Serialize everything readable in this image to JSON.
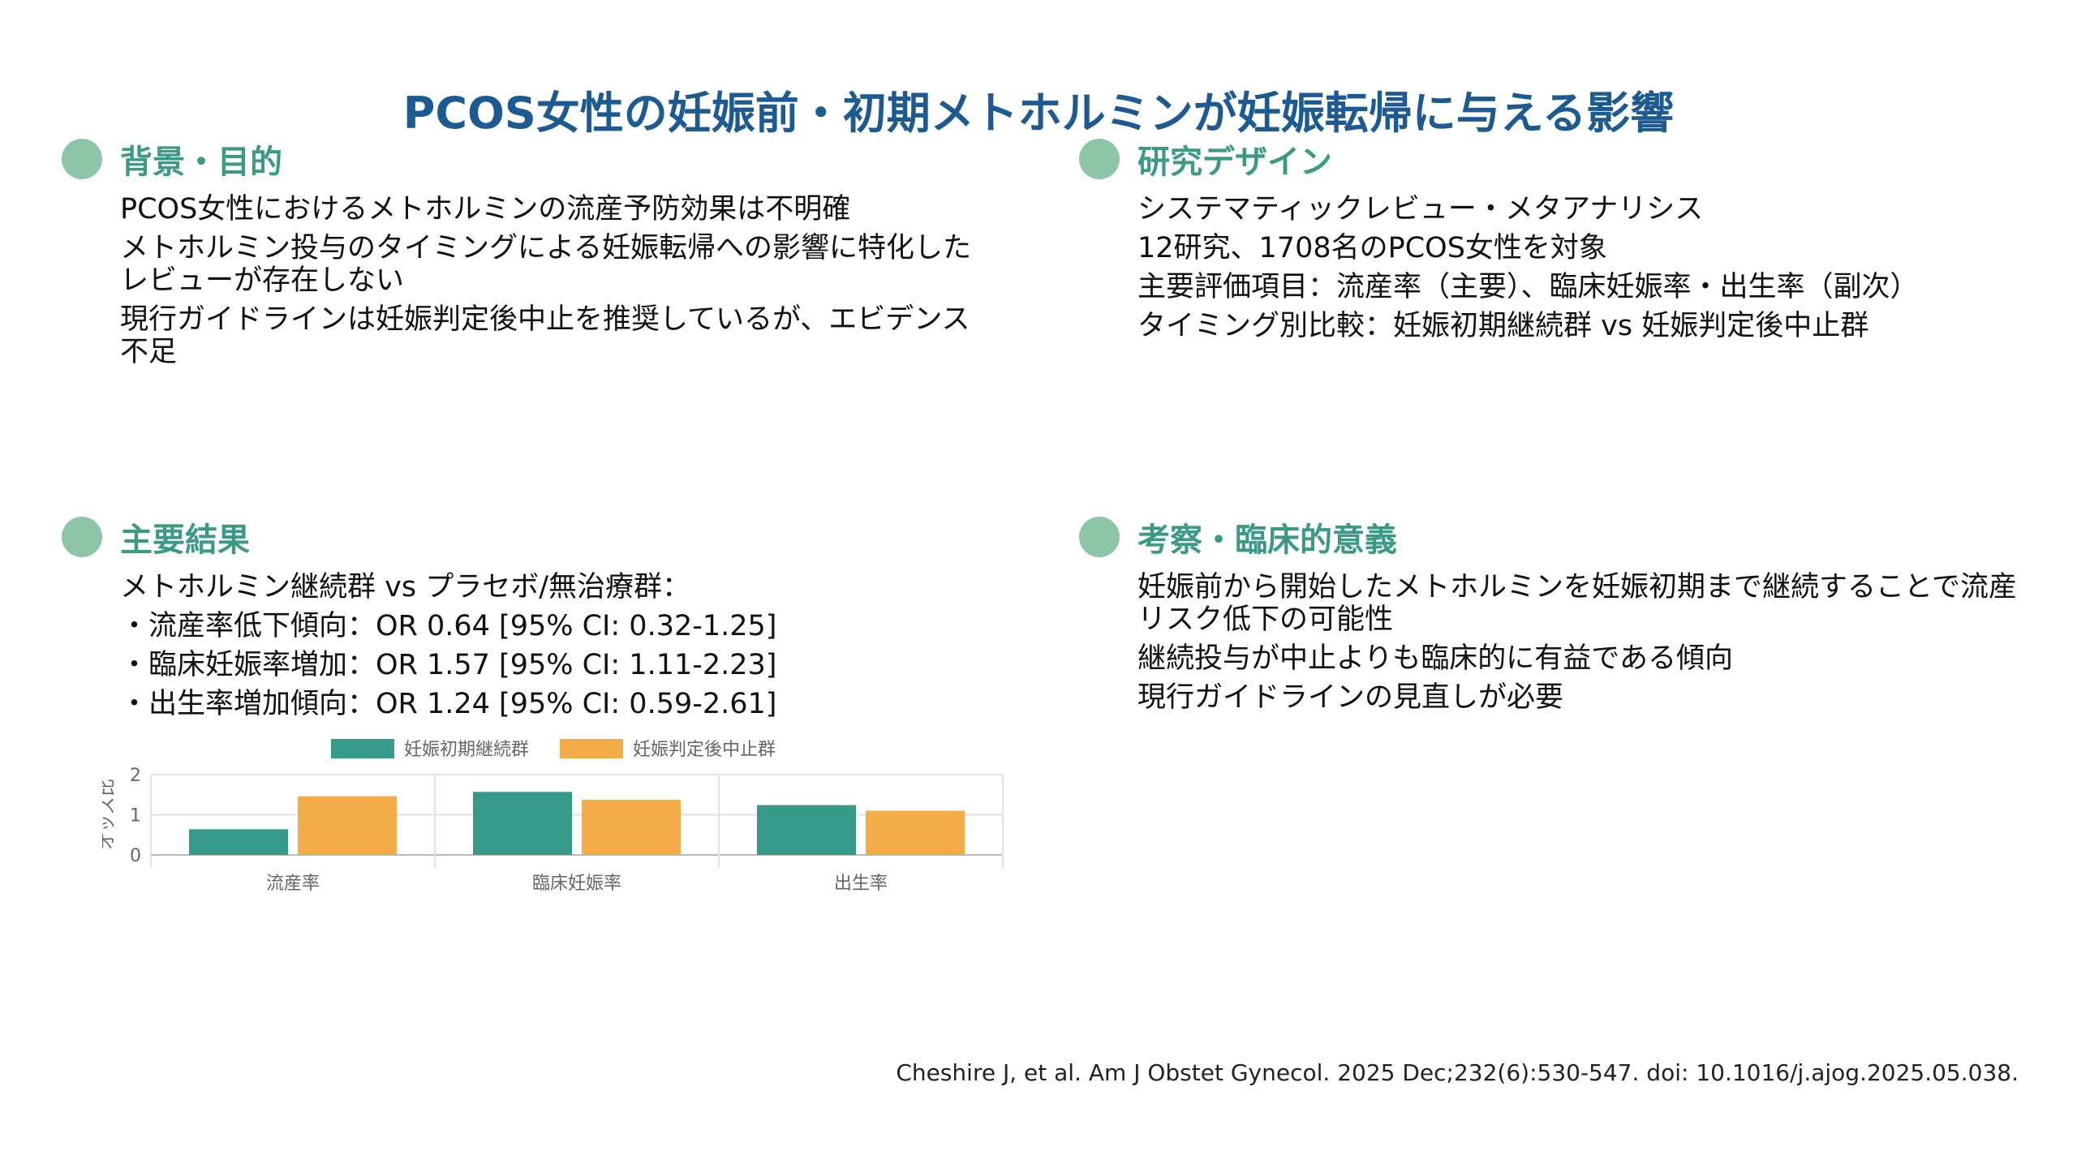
{
  "title": "PCOS女性の妊娠前・初期メトホルミンが妊娠転帰に与える影響",
  "sections": [
    {
      "heading": "背景・目的",
      "lines": [
        "PCOS女性におけるメトホルミンの流産予防効果は不明確",
        "メトホルミン投与のタイミングによる妊娠転帰への影響に特化したレビューが存在しない",
        "現行ガイドラインは妊娠判定後中止を推奨しているが、エビデンス不足"
      ]
    },
    {
      "heading": "研究デザイン",
      "lines": [
        "システマティックレビュー・メタアナリシス",
        "12研究、1708名のPCOS女性を対象",
        "主要評価項目：流産率（主要）、臨床妊娠率・出生率（副次）",
        "タイミング別比較：妊娠初期継続群 vs 妊娠判定後中止群"
      ]
    },
    {
      "heading": "主要結果",
      "lines": [
        "メトホルミン継続群 vs プラセボ/無治療群：",
        "・流産率低下傾向：OR 0.64 [95% CI: 0.32-1.25]",
        "・臨床妊娠率増加：OR 1.57 [95% CI: 1.11-2.23]",
        "・出生率増加傾向：OR 1.24 [95% CI: 0.59-2.61]"
      ]
    },
    {
      "heading": "考察・臨床的意義",
      "lines": [
        "妊娠前から開始したメトホルミンを妊娠初期まで継続することで流産リスク低下の可能性",
        "継続投与が中止よりも臨床的に有益である傾向",
        "現行ガイドラインの見直しが必要"
      ]
    }
  ],
  "chart_data": {
    "type": "bar",
    "categories": [
      "流産率",
      "臨床妊娠率",
      "出生率"
    ],
    "series": [
      {
        "name": "妊娠初期継続群",
        "values": [
          0.64,
          1.57,
          1.24
        ],
        "color": "#359a8a"
      },
      {
        "name": "妊娠判定後中止群",
        "values": [
          1.46,
          1.37,
          1.1
        ],
        "color": "#f4ac48"
      }
    ],
    "ylabel": "オッズ比",
    "ylim": [
      0,
      2
    ],
    "yticks": [
      "0",
      "1",
      "2"
    ],
    "grid": true,
    "legend": "top"
  },
  "citation": "Cheshire J, et al. Am J Obstet Gynecol. 2025 Dec;232(6):530-547. doi: 10.1016/j.ajog.2025.05.038."
}
